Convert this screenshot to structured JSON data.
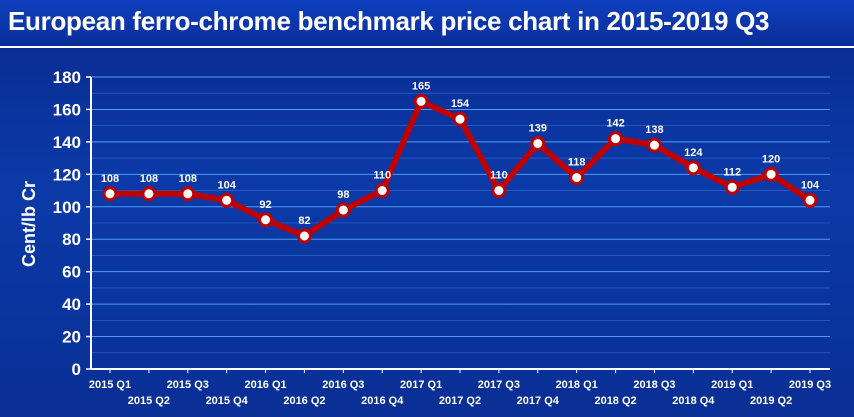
{
  "chart_data": {
    "type": "line",
    "title": "European ferro-chrome benchmark price chart in 2015-2019 Q3",
    "xlabel": "",
    "ylabel": "Cent/lb Cr",
    "ylim": [
      0,
      180
    ],
    "yticks": [
      0,
      20,
      40,
      60,
      80,
      100,
      120,
      140,
      160,
      180
    ],
    "grid": true,
    "categories": [
      "2015 Q1",
      "2015 Q2",
      "2015 Q3",
      "2015 Q4",
      "2016 Q1",
      "2016 Q2",
      "2016 Q3",
      "2016 Q4",
      "2017 Q1",
      "2017 Q2",
      "2017 Q3",
      "2017 Q4",
      "2018 Q1",
      "2018 Q2",
      "2018 Q3",
      "2018 Q4",
      "2019 Q1",
      "2019 Q2",
      "2019 Q3"
    ],
    "series": [
      {
        "values": [
          108,
          108,
          108,
          104,
          92,
          82,
          98,
          110,
          165,
          154,
          110,
          139,
          118,
          142,
          138,
          124,
          112,
          120,
          104
        ]
      }
    ],
    "colors": {
      "line": "#c00000",
      "marker_fill": "#ffffff",
      "grid": "#55a8ff",
      "text": "#ffffff"
    }
  }
}
